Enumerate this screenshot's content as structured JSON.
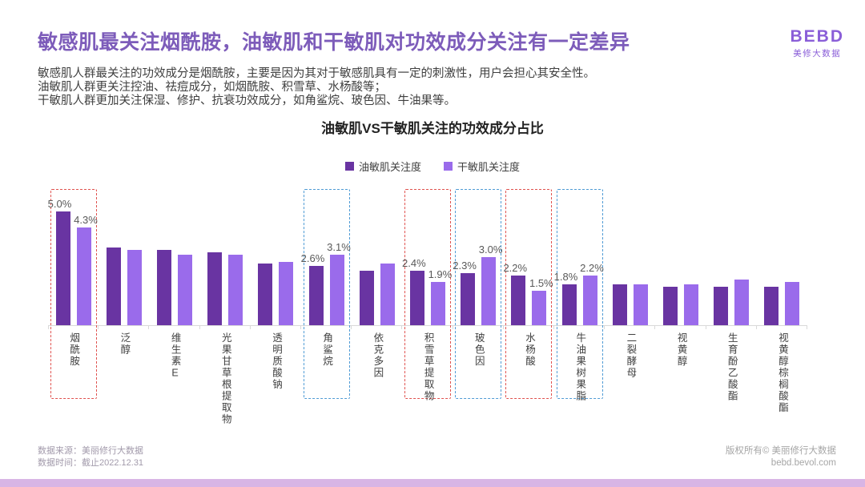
{
  "header": {
    "title": "敏感肌最关注烟酰胺，油敏肌和干敏肌对功效成分关注有一定差异",
    "paragraphs": [
      "敏感肌人群最关注的功效成分是烟酰胺，主要是因为其对于敏感肌具有一定的刺激性，用户会担心其安全性。",
      "油敏肌人群更关注控油、祛痘成分，如烟酰胺、积雪草、水杨酸等；",
      "干敏肌人群更加关注保湿、修护、抗衰功效成分，如角鲨烷、玻色因、牛油果等。"
    ],
    "logo": {
      "name": "BEBD",
      "subtitle": "美修大数据",
      "color": "#8a5ed8"
    }
  },
  "chart_data": {
    "type": "bar",
    "title": "油敏肌VS干敏肌关注的功效成分占比",
    "unit": "%",
    "ylim": [
      0,
      5.5
    ],
    "grid": false,
    "legend_position": "top",
    "categories": [
      "烟酰胺",
      "泛醇",
      "维生素E",
      "光果甘草根提取物",
      "透明质酸钠",
      "角鲨烷",
      "依克多因",
      "积雪草提取物",
      "玻色因",
      "水杨酸",
      "牛油果树果脂",
      "二裂酵母",
      "视黄醇",
      "生育酚乙酸酯",
      "视黄醇棕榈酸酯"
    ],
    "series": [
      {
        "name": "油敏肌关注度",
        "color": "#6934a2",
        "values": [
          5.0,
          3.4,
          3.3,
          3.2,
          2.7,
          2.6,
          2.4,
          2.4,
          2.3,
          2.2,
          1.8,
          1.8,
          1.7,
          1.7,
          1.7
        ]
      },
      {
        "name": "干敏肌关注度",
        "color": "#9a6beb",
        "values": [
          4.3,
          3.3,
          3.1,
          3.1,
          2.8,
          3.1,
          2.7,
          1.9,
          3.0,
          1.5,
          2.2,
          1.8,
          1.8,
          2.0,
          1.9
        ]
      }
    ],
    "data_labels": [
      {
        "category_index": 0,
        "box_color": "red",
        "values": [
          "5.0%",
          "4.3%"
        ]
      },
      {
        "category_index": 5,
        "box_color": "blue",
        "values": [
          "2.6%",
          "3.1%"
        ]
      },
      {
        "category_index": 7,
        "box_color": "red",
        "values": [
          "2.4%",
          "1.9%"
        ]
      },
      {
        "category_index": 8,
        "box_color": "blue",
        "values": [
          "2.3%",
          "3.0%"
        ]
      },
      {
        "category_index": 9,
        "box_color": "red",
        "values": [
          "2.2%",
          "1.5%"
        ]
      },
      {
        "category_index": 10,
        "box_color": "blue",
        "values": [
          "1.8%",
          "2.2%"
        ]
      }
    ],
    "highlight_colors": {
      "red": "#e0524f",
      "blue": "#4f9bd5"
    }
  },
  "footer": {
    "source_line": "数据来源：美丽修行大数据",
    "date_line": "数据时间：截止2022.12.31",
    "copyright_line": "版权所有© 美丽修行大数据",
    "website": "bebd.bevol.com"
  }
}
